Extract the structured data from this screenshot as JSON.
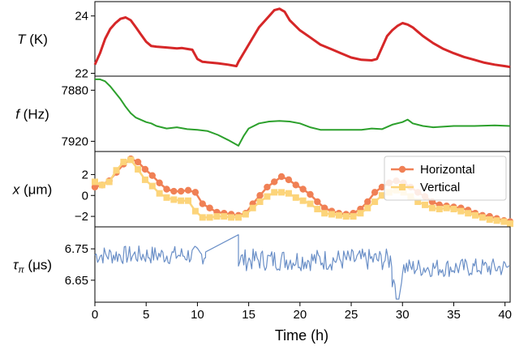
{
  "chart_data": {
    "type": "line",
    "xlabel": "Time (h)",
    "xlim": [
      0,
      40.5
    ],
    "xticks": [
      0,
      5,
      10,
      15,
      20,
      25,
      30,
      35,
      40
    ],
    "xtick_labels": [
      "0",
      "5",
      "10",
      "15",
      "20",
      "25",
      "30",
      "35",
      "40"
    ],
    "panels": [
      {
        "id": "temperature",
        "ylabel_var": "T",
        "ylabel_unit": " (K)",
        "ylim": [
          21.9,
          24.5
        ],
        "yticks": [
          22,
          24
        ],
        "ytick_labels": [
          "22",
          "24"
        ],
        "series": [
          {
            "color": "#d62728",
            "points": [
              [
                0,
                22.3
              ],
              [
                0.5,
                22.7
              ],
              [
                1,
                23.2
              ],
              [
                1.5,
                23.55
              ],
              [
                2,
                23.75
              ],
              [
                2.5,
                23.9
              ],
              [
                3,
                23.95
              ],
              [
                3.5,
                23.85
              ],
              [
                4,
                23.6
              ],
              [
                4.5,
                23.35
              ],
              [
                5,
                23.1
              ],
              [
                5.5,
                22.95
              ],
              [
                6,
                22.93
              ],
              [
                7,
                22.9
              ],
              [
                8,
                22.87
              ],
              [
                8.5,
                22.88
              ],
              [
                9,
                22.85
              ],
              [
                9.5,
                22.82
              ],
              [
                10,
                22.5
              ],
              [
                10.5,
                22.4
              ],
              [
                12,
                22.35
              ],
              [
                13,
                22.3
              ],
              [
                13.8,
                22.25
              ],
              [
                14,
                22.4
              ],
              [
                15,
                23.0
              ],
              [
                16,
                23.6
              ],
              [
                17,
                24.0
              ],
              [
                17.5,
                24.2
              ],
              [
                18,
                24.25
              ],
              [
                18.5,
                24.15
              ],
              [
                19,
                23.85
              ],
              [
                20,
                23.5
              ],
              [
                21,
                23.25
              ],
              [
                22,
                23.0
              ],
              [
                23,
                22.85
              ],
              [
                24,
                22.7
              ],
              [
                25,
                22.55
              ],
              [
                26,
                22.47
              ],
              [
                27,
                22.45
              ],
              [
                27.5,
                22.5
              ],
              [
                28,
                22.9
              ],
              [
                28.5,
                23.3
              ],
              [
                29,
                23.5
              ],
              [
                29.5,
                23.65
              ],
              [
                30,
                23.75
              ],
              [
                30.5,
                23.7
              ],
              [
                31,
                23.6
              ],
              [
                31.5,
                23.45
              ],
              [
                32,
                23.3
              ],
              [
                33,
                23.05
              ],
              [
                34,
                22.85
              ],
              [
                35,
                22.7
              ],
              [
                36,
                22.57
              ],
              [
                37,
                22.47
              ],
              [
                38,
                22.37
              ],
              [
                39,
                22.3
              ],
              [
                40,
                22.25
              ],
              [
                40.5,
                22.22
              ]
            ]
          }
        ]
      },
      {
        "id": "frequency",
        "ylabel_var": "f",
        "ylabel_unit": " (Hz)",
        "ylim": [
          7869,
          7928
        ],
        "inverted": true,
        "yticks": [
          7880,
          7920
        ],
        "ytick_labels": [
          "7880",
          "7920"
        ],
        "series": [
          {
            "color": "#2ca02c",
            "points": [
              [
                0,
                7871.5
              ],
              [
                0.5,
                7871.5
              ],
              [
                1,
                7873
              ],
              [
                1.5,
                7877
              ],
              [
                2,
                7882
              ],
              [
                2.5,
                7887
              ],
              [
                3,
                7893
              ],
              [
                3.5,
                7898
              ],
              [
                4,
                7901.5
              ],
              [
                5,
                7905
              ],
              [
                5.5,
                7906
              ],
              [
                6,
                7908
              ],
              [
                7,
                7910
              ],
              [
                8,
                7909
              ],
              [
                9,
                7910.5
              ],
              [
                10,
                7911
              ],
              [
                11,
                7912
              ],
              [
                12,
                7915
              ],
              [
                13,
                7919
              ],
              [
                14,
                7923.5
              ],
              [
                14.5,
                7916
              ],
              [
                15,
                7910
              ],
              [
                16,
                7906
              ],
              [
                17,
                7904.5
              ],
              [
                18,
                7904
              ],
              [
                19,
                7904.5
              ],
              [
                20,
                7906
              ],
              [
                21,
                7909
              ],
              [
                22,
                7911
              ],
              [
                24,
                7911
              ],
              [
                26,
                7911
              ],
              [
                27,
                7910
              ],
              [
                28,
                7910.5
              ],
              [
                29,
                7907
              ],
              [
                30,
                7905
              ],
              [
                30.5,
                7903
              ],
              [
                31,
                7906
              ],
              [
                32,
                7908
              ],
              [
                33,
                7909
              ],
              [
                35,
                7908
              ],
              [
                37,
                7908
              ],
              [
                39,
                7907.5
              ],
              [
                40.5,
                7908
              ]
            ]
          }
        ]
      },
      {
        "id": "position",
        "ylabel_var": "x",
        "ylabel_unit": " (μm)",
        "ylim": [
          -3,
          4.2
        ],
        "yticks": [
          -2,
          0,
          2
        ],
        "ytick_labels": [
          "−2",
          "0",
          "2"
        ],
        "legend_placement": "right",
        "series": [
          {
            "name": "Horizontal",
            "color": "#f08055",
            "marker": "circle",
            "points": [
              [
                0,
                0.8
              ],
              [
                0.7,
                1.0
              ],
              [
                1.4,
                1.4
              ],
              [
                2.1,
                2.2
              ],
              [
                2.8,
                3.0
              ],
              [
                3.5,
                3.5
              ],
              [
                4.2,
                3.2
              ],
              [
                4.9,
                2.5
              ],
              [
                5.6,
                1.9
              ],
              [
                6.3,
                1.2
              ],
              [
                7,
                0.6
              ],
              [
                7.7,
                0.4
              ],
              [
                8.4,
                0.4
              ],
              [
                9.1,
                0.5
              ],
              [
                9.8,
                0.3
              ],
              [
                10.5,
                -0.8
              ],
              [
                11.2,
                -1.2
              ],
              [
                11.9,
                -1.6
              ],
              [
                12.6,
                -1.7
              ],
              [
                13.3,
                -1.8
              ],
              [
                14,
                -1.9
              ],
              [
                14.7,
                -1.7
              ],
              [
                15.4,
                -0.8
              ],
              [
                16.1,
                0.0
              ],
              [
                16.8,
                0.8
              ],
              [
                17.5,
                1.3
              ],
              [
                18.2,
                1.8
              ],
              [
                18.9,
                1.5
              ],
              [
                19.6,
                1.0
              ],
              [
                20.3,
                0.6
              ],
              [
                21,
                0.1
              ],
              [
                21.7,
                -0.6
              ],
              [
                22.4,
                -1.2
              ],
              [
                23.1,
                -1.5
              ],
              [
                23.8,
                -1.7
              ],
              [
                24.5,
                -1.8
              ],
              [
                25.2,
                -1.7
              ],
              [
                25.9,
                -1.3
              ],
              [
                26.6,
                -0.6
              ],
              [
                27.3,
                0.3
              ],
              [
                28,
                0.8
              ],
              [
                28.7,
                1.2
              ],
              [
                29.4,
                1.4
              ],
              [
                30.1,
                1.2
              ],
              [
                30.8,
                0.8
              ],
              [
                31.5,
                0.3
              ],
              [
                32.2,
                -0.1
              ],
              [
                32.9,
                -0.6
              ],
              [
                33.6,
                -0.9
              ],
              [
                34.3,
                -1.0
              ],
              [
                35,
                -1.1
              ],
              [
                35.7,
                -1.2
              ],
              [
                36.4,
                -1.4
              ],
              [
                37.1,
                -1.7
              ],
              [
                37.8,
                -1.9
              ],
              [
                38.5,
                -2.0
              ],
              [
                39.2,
                -2.2
              ],
              [
                39.9,
                -2.4
              ],
              [
                40.5,
                -2.5
              ]
            ]
          },
          {
            "name": "Vertical",
            "color": "#fcd47a",
            "marker": "square",
            "points": [
              [
                0,
                1.3
              ],
              [
                0.7,
                1.0
              ],
              [
                1.4,
                1.3
              ],
              [
                2.1,
                2.4
              ],
              [
                2.8,
                3.2
              ],
              [
                3.5,
                3.4
              ],
              [
                4.2,
                2.5
              ],
              [
                4.9,
                1.5
              ],
              [
                5.6,
                0.9
              ],
              [
                6.3,
                0.2
              ],
              [
                7,
                -0.2
              ],
              [
                7.7,
                -0.4
              ],
              [
                8.4,
                -0.5
              ],
              [
                9.1,
                -0.5
              ],
              [
                9.8,
                -1.5
              ],
              [
                10.5,
                -2.1
              ],
              [
                11.2,
                -2.1
              ],
              [
                11.9,
                -2.0
              ],
              [
                12.6,
                -2.0
              ],
              [
                13.3,
                -2.1
              ],
              [
                14,
                -2.1
              ],
              [
                14.7,
                -1.8
              ],
              [
                15.4,
                -1.2
              ],
              [
                16.1,
                -0.6
              ],
              [
                16.8,
                -0.1
              ],
              [
                17.5,
                0.3
              ],
              [
                18.2,
                0.3
              ],
              [
                18.9,
                0.2
              ],
              [
                19.6,
                -0.2
              ],
              [
                20.3,
                -0.5
              ],
              [
                21,
                -0.8
              ],
              [
                21.7,
                -1.3
              ],
              [
                22.4,
                -1.7
              ],
              [
                23.1,
                -1.8
              ],
              [
                23.8,
                -1.9
              ],
              [
                24.5,
                -2.0
              ],
              [
                25.2,
                -2.0
              ],
              [
                25.9,
                -1.7
              ],
              [
                26.6,
                -1.2
              ],
              [
                27.3,
                -0.6
              ],
              [
                28,
                0.0
              ],
              [
                28.7,
                0.3
              ],
              [
                29.4,
                0.5
              ],
              [
                30.1,
                0.3
              ],
              [
                30.8,
                -0.1
              ],
              [
                31.5,
                -0.6
              ],
              [
                32.2,
                -0.9
              ],
              [
                32.9,
                -1.2
              ],
              [
                33.6,
                -1.3
              ],
              [
                34.3,
                -1.2
              ],
              [
                35,
                -1.3
              ],
              [
                35.7,
                -1.5
              ],
              [
                36.4,
                -1.7
              ],
              [
                37.1,
                -1.9
              ],
              [
                37.8,
                -2.1
              ],
              [
                38.5,
                -2.3
              ],
              [
                39.2,
                -2.4
              ],
              [
                39.9,
                -2.5
              ],
              [
                40.5,
                -2.7
              ]
            ]
          }
        ]
      },
      {
        "id": "pi-time",
        "ylabel_var": "τ",
        "ylabel_sub": "π",
        "ylabel_unit": " (μs)",
        "ylim": [
          6.58,
          6.82
        ],
        "yticks": [
          6.65,
          6.75
        ],
        "ytick_labels": [
          "6.65",
          "6.75"
        ],
        "series": [
          {
            "color": "#6a8fc7",
            "noise_seed": 7,
            "segments": [
              {
                "x0": 0,
                "x1": 10.8,
                "base": 6.73,
                "amp": 0.03
              },
              {
                "x0": 10.8,
                "x1": 14.0,
                "linear": [
                  6.74,
                  6.795
                ]
              },
              {
                "x0": 14.0,
                "x1": 29,
                "base": 6.715,
                "amp": 0.035
              },
              {
                "x0": 29,
                "x1": 30,
                "base": 6.65,
                "amp": 0.035,
                "dip": 6.59
              },
              {
                "x0": 30,
                "x1": 40.5,
                "base": 6.69,
                "amp": 0.03
              }
            ]
          }
        ]
      }
    ]
  }
}
